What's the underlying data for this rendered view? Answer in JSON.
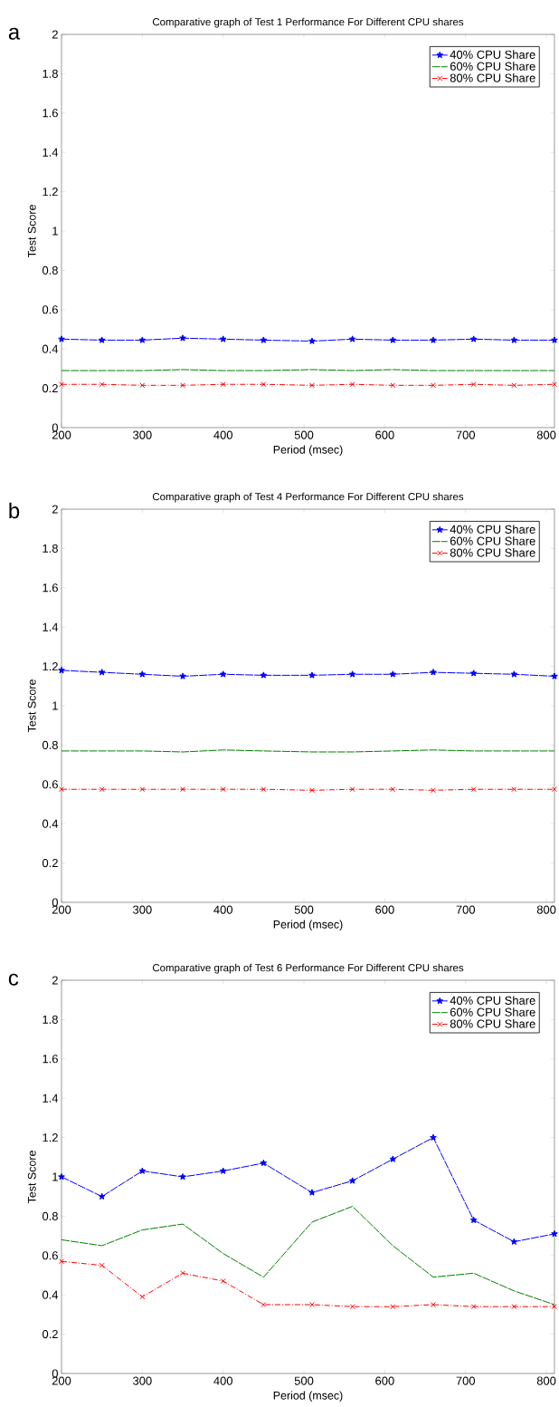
{
  "chart_data": [
    {
      "type": "line",
      "title": "Comparative graph of Test 1 Performance For Different CPU shares",
      "xlabel": "Period (msec)",
      "ylabel": "Test Score",
      "annotations": [
        "a"
      ],
      "x": [
        200,
        250,
        300,
        350,
        400,
        450,
        510,
        560,
        610,
        660,
        710,
        760,
        810
      ],
      "xlim": [
        200,
        810
      ],
      "xticks": [
        200,
        300,
        400,
        500,
        600,
        700,
        800
      ],
      "ylim": [
        0,
        2
      ],
      "yticks": [
        0,
        0.2,
        0.4,
        0.6,
        0.8,
        1,
        1.2,
        1.4,
        1.6,
        1.8,
        2
      ],
      "legend": "top right",
      "series": [
        {
          "name": "40% CPU Share",
          "color": "#0000ff",
          "marker": "star",
          "line_style": "dashed",
          "values": [
            0.45,
            0.445,
            0.445,
            0.455,
            0.45,
            0.445,
            0.44,
            0.45,
            0.445,
            0.445,
            0.45,
            0.445,
            0.445
          ]
        },
        {
          "name": "60% CPU Share",
          "color": "#008000",
          "marker": "none",
          "line_style": "dashed",
          "values": [
            0.29,
            0.29,
            0.29,
            0.295,
            0.29,
            0.29,
            0.295,
            0.29,
            0.295,
            0.29,
            0.29,
            0.29,
            0.29
          ]
        },
        {
          "name": "80% CPU Share",
          "color": "#ff0000",
          "marker": "cross",
          "line_style": "dashdot",
          "values": [
            0.22,
            0.22,
            0.215,
            0.215,
            0.22,
            0.22,
            0.215,
            0.22,
            0.215,
            0.215,
            0.22,
            0.215,
            0.22
          ]
        }
      ]
    },
    {
      "type": "line",
      "title": "Comparative graph of Test 4 Performance For Different CPU shares",
      "xlabel": "Period (msec)",
      "ylabel": "Test Score",
      "annotations": [
        "b"
      ],
      "x": [
        200,
        250,
        300,
        350,
        400,
        450,
        510,
        560,
        610,
        660,
        710,
        760,
        810
      ],
      "xlim": [
        200,
        810
      ],
      "xticks": [
        200,
        300,
        400,
        500,
        600,
        700,
        800
      ],
      "ylim": [
        0,
        2
      ],
      "yticks": [
        0,
        0.2,
        0.4,
        0.6,
        0.8,
        1,
        1.2,
        1.4,
        1.6,
        1.8,
        2
      ],
      "legend": "top right",
      "series": [
        {
          "name": "40% CPU Share",
          "color": "#0000ff",
          "marker": "star",
          "line_style": "dashed",
          "values": [
            1.18,
            1.17,
            1.16,
            1.15,
            1.16,
            1.155,
            1.155,
            1.16,
            1.16,
            1.17,
            1.165,
            1.16,
            1.15
          ]
        },
        {
          "name": "60% CPU Share",
          "color": "#008000",
          "marker": "none",
          "line_style": "dashed",
          "values": [
            0.77,
            0.77,
            0.77,
            0.765,
            0.775,
            0.77,
            0.765,
            0.765,
            0.77,
            0.775,
            0.77,
            0.77,
            0.77
          ]
        },
        {
          "name": "80% CPU Share",
          "color": "#ff0000",
          "marker": "cross",
          "line_style": "dashdot",
          "values": [
            0.575,
            0.575,
            0.575,
            0.575,
            0.575,
            0.575,
            0.57,
            0.575,
            0.575,
            0.57,
            0.575,
            0.575,
            0.575
          ]
        }
      ]
    },
    {
      "type": "line",
      "title": "Comparative graph of Test 6 Performance For Different CPU shares",
      "xlabel": "Period (msec)",
      "ylabel": "Test Score",
      "annotations": [
        "c"
      ],
      "x": [
        200,
        250,
        300,
        350,
        400,
        450,
        510,
        560,
        610,
        660,
        710,
        760,
        810
      ],
      "xlim": [
        200,
        810
      ],
      "xticks": [
        200,
        300,
        400,
        500,
        600,
        700,
        800
      ],
      "ylim": [
        0,
        2
      ],
      "yticks": [
        0,
        0.2,
        0.4,
        0.6,
        0.8,
        1,
        1.2,
        1.4,
        1.6,
        1.8,
        2
      ],
      "legend": "top right",
      "series": [
        {
          "name": "40% CPU Share",
          "color": "#0000ff",
          "marker": "star",
          "line_style": "dashed",
          "values": [
            1.0,
            0.9,
            1.03,
            1.0,
            1.03,
            1.07,
            0.92,
            0.98,
            1.09,
            1.2,
            0.78,
            0.67,
            0.71
          ]
        },
        {
          "name": "60% CPU Share",
          "color": "#008000",
          "marker": "none",
          "line_style": "dashed",
          "values": [
            0.68,
            0.65,
            0.73,
            0.76,
            0.61,
            0.49,
            0.77,
            0.85,
            0.65,
            0.49,
            0.51,
            0.42,
            0.35
          ]
        },
        {
          "name": "80% CPU Share",
          "color": "#ff0000",
          "marker": "cross",
          "line_style": "dashdot",
          "values": [
            0.57,
            0.55,
            0.39,
            0.51,
            0.47,
            0.35,
            0.35,
            0.34,
            0.34,
            0.35,
            0.34,
            0.34,
            0.34
          ]
        }
      ]
    }
  ]
}
